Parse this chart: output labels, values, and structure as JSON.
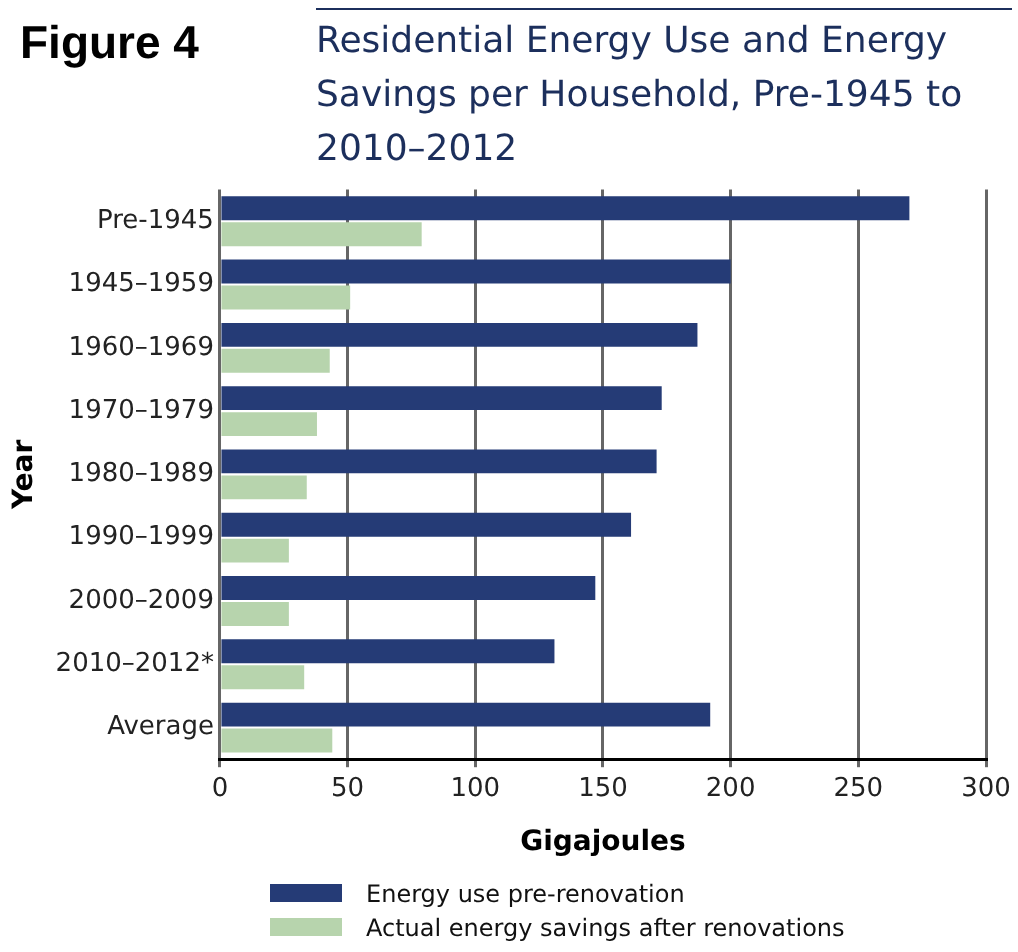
{
  "chart_data": {
    "type": "bar",
    "orientation": "horizontal",
    "title": "Residential Energy Use and Energy Savings per Household, Pre-1945 to 2010–2012",
    "annotations": [
      "Figure 4"
    ],
    "xlabel": "Gigajoules",
    "ylabel": "Year",
    "categories": [
      "Pre-1945",
      "1945–1959",
      "1960–1969",
      "1970–1979",
      "1980–1989",
      "1990–1999",
      "2000–2009",
      "2010–2012*",
      "Average"
    ],
    "series": [
      {
        "name": "Energy use pre-renovation",
        "color": "#253b76",
        "values": [
          270,
          200,
          187,
          173,
          171,
          161,
          147,
          131,
          192
        ]
      },
      {
        "name": "Actual energy savings after renovations",
        "color": "#b7d4ad",
        "values": [
          79,
          51,
          43,
          38,
          34,
          27,
          27,
          33,
          44
        ]
      }
    ],
    "xlim": [
      0,
      300
    ],
    "xticks": [
      0,
      50,
      100,
      150,
      200,
      250,
      300
    ],
    "grid": "x",
    "legend": "bottom"
  }
}
